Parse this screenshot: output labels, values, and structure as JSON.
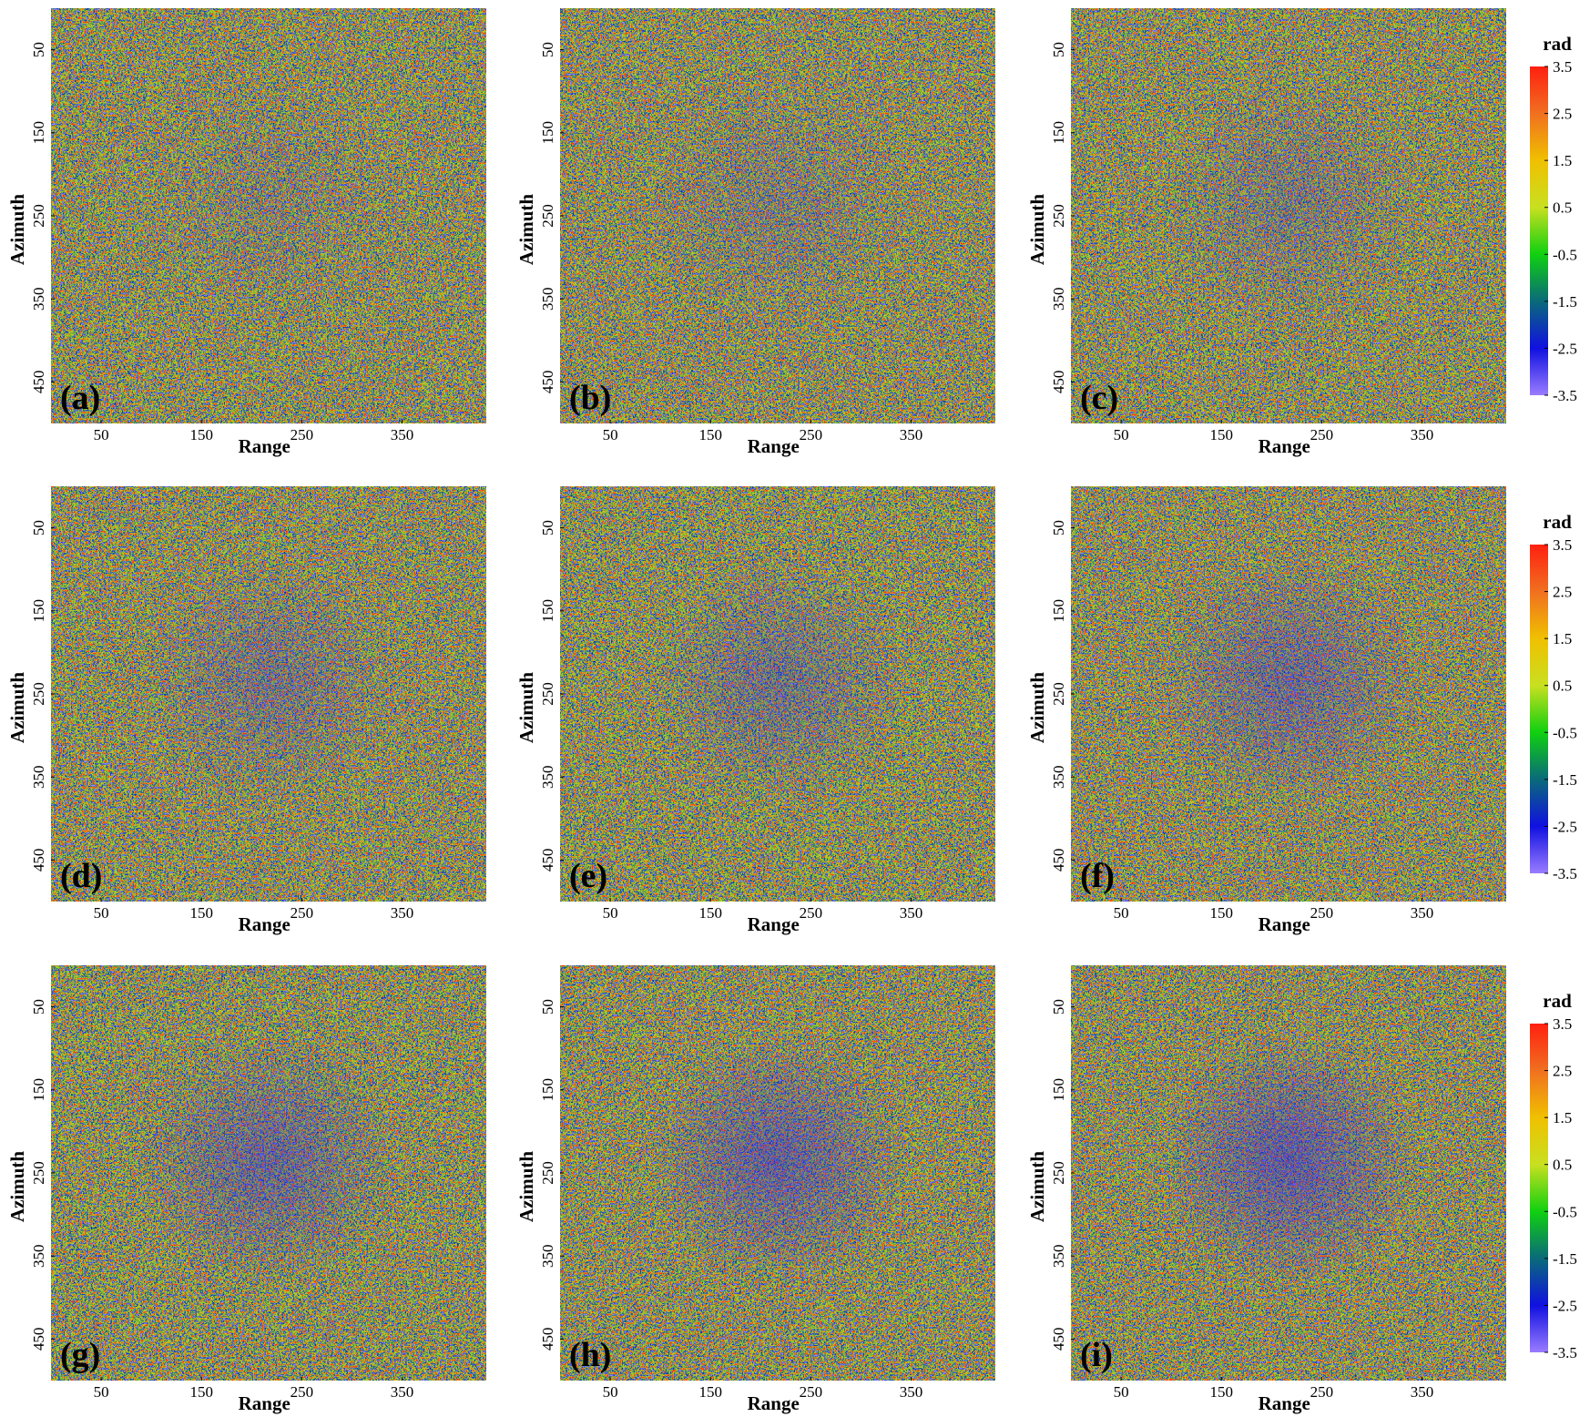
{
  "chart_data": [
    {
      "type": "heatmap",
      "title": "(a)",
      "x_label": "Range",
      "y_label": "Azimuth",
      "xlim": [
        0,
        434
      ],
      "ylim": [
        0,
        500
      ],
      "xticks": [
        50,
        150,
        250,
        350
      ],
      "yticks": [
        50,
        150,
        250,
        350,
        450
      ]
    },
    {
      "type": "heatmap",
      "title": "(b)",
      "x_label": "Range",
      "y_label": "Azimuth",
      "xlim": [
        0,
        434
      ],
      "ylim": [
        0,
        500
      ],
      "xticks": [
        50,
        150,
        250,
        350
      ],
      "yticks": [
        50,
        150,
        250,
        350,
        450
      ]
    },
    {
      "type": "heatmap",
      "title": "(c)",
      "x_label": "Range",
      "y_label": "Azimuth",
      "xlim": [
        0,
        434
      ],
      "ylim": [
        0,
        500
      ],
      "xticks": [
        50,
        150,
        250,
        350
      ],
      "yticks": [
        50,
        150,
        250,
        350,
        450
      ],
      "colorbar": {
        "label": "rad",
        "lim": [
          -3.5,
          3.5
        ],
        "ticks": [
          3.5,
          2.5,
          1.5,
          0.5,
          -0.5,
          -1.5,
          -2.5,
          -3.5
        ],
        "colors": [
          "#9a7cff",
          "#1010e0",
          "#0a6a7a",
          "#10d010",
          "#c8e020",
          "#f0c000",
          "#f07020",
          "#ff2010"
        ]
      }
    },
    {
      "type": "heatmap",
      "title": "(d)",
      "x_label": "Range",
      "y_label": "Azimuth",
      "xlim": [
        0,
        434
      ],
      "ylim": [
        0,
        500
      ],
      "xticks": [
        50,
        150,
        250,
        350
      ],
      "yticks": [
        50,
        150,
        250,
        350,
        450
      ]
    },
    {
      "type": "heatmap",
      "title": "(e)",
      "x_label": "Range",
      "y_label": "Azimuth",
      "xlim": [
        0,
        434
      ],
      "ylim": [
        0,
        500
      ],
      "xticks": [
        50,
        150,
        250,
        350
      ],
      "yticks": [
        50,
        150,
        250,
        350,
        450
      ]
    },
    {
      "type": "heatmap",
      "title": "(f)",
      "x_label": "Range",
      "y_label": "Azimuth",
      "xlim": [
        0,
        434
      ],
      "ylim": [
        0,
        500
      ],
      "xticks": [
        50,
        150,
        250,
        350
      ],
      "yticks": [
        50,
        150,
        250,
        350,
        450
      ],
      "colorbar": {
        "label": "rad",
        "lim": [
          -3.5,
          3.5
        ],
        "ticks": [
          3.5,
          2.5,
          1.5,
          0.5,
          -0.5,
          -1.5,
          -2.5,
          -3.5
        ],
        "colors": [
          "#9a7cff",
          "#1010e0",
          "#0a6a7a",
          "#10d010",
          "#c8e020",
          "#f0c000",
          "#f07020",
          "#ff2010"
        ]
      }
    },
    {
      "type": "heatmap",
      "title": "(g)",
      "x_label": "Range",
      "y_label": "Azimuth",
      "xlim": [
        0,
        434
      ],
      "ylim": [
        0,
        500
      ],
      "xticks": [
        50,
        150,
        250,
        350
      ],
      "yticks": [
        50,
        150,
        250,
        350,
        450
      ]
    },
    {
      "type": "heatmap",
      "title": "(h)",
      "x_label": "Range",
      "y_label": "Azimuth",
      "xlim": [
        0,
        434
      ],
      "ylim": [
        0,
        500
      ],
      "xticks": [
        50,
        150,
        250,
        350
      ],
      "yticks": [
        50,
        150,
        250,
        350,
        450
      ]
    },
    {
      "type": "heatmap",
      "title": "(i)",
      "x_label": "Range",
      "y_label": "Azimuth",
      "xlim": [
        0,
        434
      ],
      "ylim": [
        0,
        500
      ],
      "xticks": [
        50,
        150,
        250,
        350
      ],
      "yticks": [
        50,
        150,
        250,
        350,
        450
      ],
      "colorbar": {
        "label": "rad",
        "lim": [
          -3.5,
          3.5
        ],
        "ticks": [
          3.5,
          2.5,
          1.5,
          0.5,
          -0.5,
          -1.5,
          -2.5,
          -3.5
        ],
        "colors": [
          "#9a7cff",
          "#1010e0",
          "#0a6a7a",
          "#10d010",
          "#c8e020",
          "#f0c000",
          "#f07020",
          "#ff2010"
        ]
      }
    }
  ]
}
